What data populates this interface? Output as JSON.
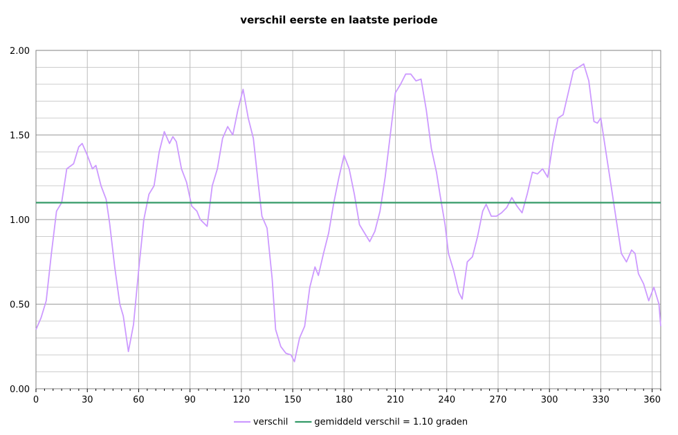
{
  "chart_data": {
    "type": "line",
    "title": "verschil eerste en laatste periode",
    "xlabel": "",
    "ylabel": "",
    "xlim": [
      0,
      365
    ],
    "ylim": [
      0,
      2
    ],
    "x_ticks": [
      0,
      30,
      60,
      90,
      120,
      150,
      180,
      210,
      240,
      270,
      300,
      330,
      360
    ],
    "x_tick_labels": [
      "0",
      "30",
      "60",
      "90",
      "120",
      "150",
      "180",
      "210",
      "240",
      "270",
      "300",
      "330",
      "360"
    ],
    "y_ticks": [
      0,
      0.5,
      1,
      1.5,
      2
    ],
    "y_tick_labels": [
      "0.00",
      "0.50",
      "1.00",
      "1.50",
      "2.00"
    ],
    "grid": true,
    "legend_position": "bottom",
    "series": [
      {
        "name": "verschil",
        "color": "#cc99ff",
        "points": [
          [
            0,
            0.35
          ],
          [
            3,
            0.42
          ],
          [
            6,
            0.52
          ],
          [
            9,
            0.8
          ],
          [
            12,
            1.05
          ],
          [
            15,
            1.1
          ],
          [
            18,
            1.3
          ],
          [
            22,
            1.33
          ],
          [
            25,
            1.43
          ],
          [
            27,
            1.45
          ],
          [
            30,
            1.38
          ],
          [
            33,
            1.3
          ],
          [
            35,
            1.32
          ],
          [
            38,
            1.2
          ],
          [
            41,
            1.12
          ],
          [
            43,
            0.98
          ],
          [
            46,
            0.72
          ],
          [
            49,
            0.5
          ],
          [
            51,
            0.43
          ],
          [
            54,
            0.22
          ],
          [
            57,
            0.38
          ],
          [
            60,
            0.7
          ],
          [
            63,
            1.0
          ],
          [
            66,
            1.15
          ],
          [
            69,
            1.2
          ],
          [
            72,
            1.4
          ],
          [
            75,
            1.52
          ],
          [
            78,
            1.45
          ],
          [
            80,
            1.49
          ],
          [
            82,
            1.46
          ],
          [
            85,
            1.3
          ],
          [
            88,
            1.22
          ],
          [
            91,
            1.08
          ],
          [
            94,
            1.05
          ],
          [
            96,
            1.0
          ],
          [
            100,
            0.96
          ],
          [
            103,
            1.2
          ],
          [
            106,
            1.3
          ],
          [
            109,
            1.48
          ],
          [
            112,
            1.55
          ],
          [
            115,
            1.5
          ],
          [
            118,
            1.65
          ],
          [
            121,
            1.77
          ],
          [
            124,
            1.6
          ],
          [
            127,
            1.48
          ],
          [
            130,
            1.2
          ],
          [
            132,
            1.02
          ],
          [
            135,
            0.95
          ],
          [
            138,
            0.65
          ],
          [
            140,
            0.35
          ],
          [
            143,
            0.25
          ],
          [
            146,
            0.21
          ],
          [
            149,
            0.2
          ],
          [
            151,
            0.16
          ],
          [
            154,
            0.3
          ],
          [
            157,
            0.37
          ],
          [
            160,
            0.6
          ],
          [
            163,
            0.72
          ],
          [
            165,
            0.67
          ],
          [
            168,
            0.8
          ],
          [
            171,
            0.92
          ],
          [
            174,
            1.1
          ],
          [
            177,
            1.25
          ],
          [
            180,
            1.38
          ],
          [
            183,
            1.3
          ],
          [
            186,
            1.15
          ],
          [
            189,
            0.97
          ],
          [
            192,
            0.92
          ],
          [
            195,
            0.87
          ],
          [
            198,
            0.93
          ],
          [
            201,
            1.05
          ],
          [
            204,
            1.25
          ],
          [
            207,
            1.5
          ],
          [
            210,
            1.75
          ],
          [
            213,
            1.8
          ],
          [
            216,
            1.86
          ],
          [
            219,
            1.86
          ],
          [
            222,
            1.82
          ],
          [
            225,
            1.83
          ],
          [
            228,
            1.65
          ],
          [
            231,
            1.42
          ],
          [
            234,
            1.28
          ],
          [
            236,
            1.15
          ],
          [
            239,
            0.97
          ],
          [
            241,
            0.8
          ],
          [
            244,
            0.7
          ],
          [
            247,
            0.57
          ],
          [
            249,
            0.53
          ],
          [
            252,
            0.75
          ],
          [
            255,
            0.78
          ],
          [
            258,
            0.9
          ],
          [
            261,
            1.05
          ],
          [
            263,
            1.09
          ],
          [
            266,
            1.02
          ],
          [
            269,
            1.02
          ],
          [
            272,
            1.04
          ],
          [
            275,
            1.07
          ],
          [
            278,
            1.13
          ],
          [
            281,
            1.08
          ],
          [
            284,
            1.04
          ],
          [
            287,
            1.15
          ],
          [
            290,
            1.28
          ],
          [
            293,
            1.27
          ],
          [
            296,
            1.3
          ],
          [
            299,
            1.25
          ],
          [
            302,
            1.45
          ],
          [
            305,
            1.6
          ],
          [
            308,
            1.62
          ],
          [
            311,
            1.75
          ],
          [
            314,
            1.88
          ],
          [
            317,
            1.9
          ],
          [
            320,
            1.92
          ],
          [
            323,
            1.82
          ],
          [
            326,
            1.58
          ],
          [
            328,
            1.57
          ],
          [
            330,
            1.6
          ],
          [
            333,
            1.4
          ],
          [
            336,
            1.2
          ],
          [
            339,
            1.0
          ],
          [
            342,
            0.8
          ],
          [
            345,
            0.75
          ],
          [
            348,
            0.82
          ],
          [
            350,
            0.8
          ],
          [
            352,
            0.68
          ],
          [
            355,
            0.62
          ],
          [
            358,
            0.52
          ],
          [
            361,
            0.6
          ],
          [
            364,
            0.5
          ],
          [
            365,
            0.37
          ]
        ]
      },
      {
        "name": "gemiddeld verschil = 1.10 graden",
        "color": "#339966",
        "points": [
          [
            0,
            1.1
          ],
          [
            365,
            1.1
          ]
        ]
      }
    ]
  }
}
